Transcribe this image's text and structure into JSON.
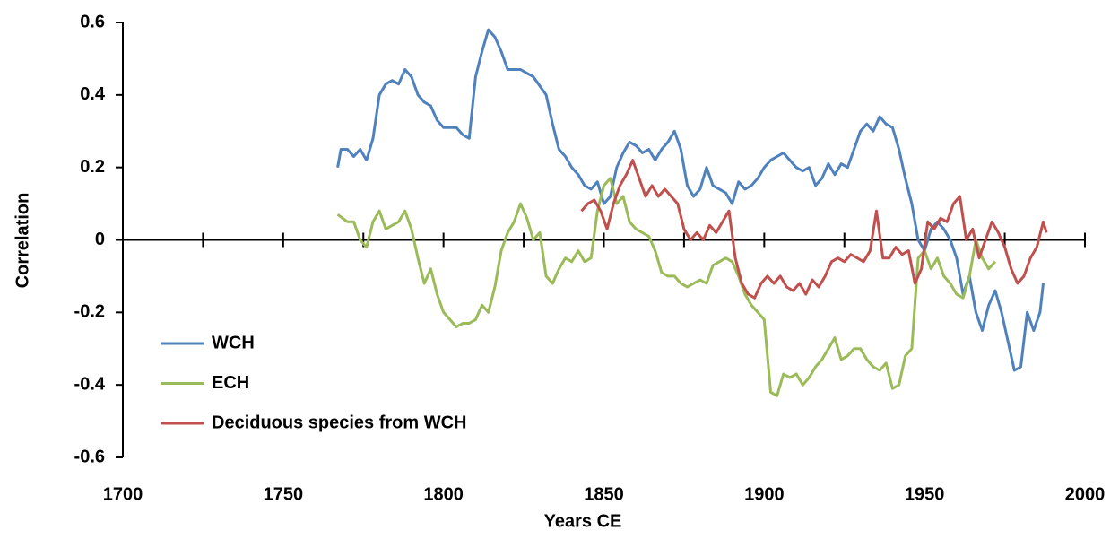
{
  "chart_data": {
    "type": "line",
    "x_label": "Years CE",
    "y_label": "Correlation",
    "xlim": [
      1700,
      2000
    ],
    "xticks": [
      1700,
      1750,
      1800,
      1850,
      1900,
      1950,
      2000
    ],
    "xminor_ticks": [
      1725,
      1775,
      1825,
      1875,
      1925,
      1975
    ],
    "ylim": [
      -0.6,
      0.6
    ],
    "yticks": [
      -0.6,
      -0.4,
      -0.2,
      0,
      0.2,
      0.4,
      0.6
    ],
    "legend": "lower left",
    "series": [
      {
        "name": "WCH",
        "color": "#4f81bd",
        "x": [
          1767,
          1768,
          1770,
          1772,
          1774,
          1776,
          1778,
          1780,
          1782,
          1784,
          1786,
          1788,
          1790,
          1792,
          1794,
          1796,
          1798,
          1800,
          1802,
          1804,
          1806,
          1808,
          1810,
          1812,
          1814,
          1816,
          1818,
          1820,
          1824,
          1828,
          1832,
          1834,
          1836,
          1838,
          1840,
          1842,
          1844,
          1846,
          1848,
          1850,
          1852,
          1854,
          1856,
          1858,
          1860,
          1862,
          1864,
          1866,
          1868,
          1870,
          1872,
          1874,
          1876,
          1878,
          1880,
          1882,
          1884,
          1886,
          1888,
          1890,
          1892,
          1894,
          1896,
          1898,
          1900,
          1902,
          1904,
          1906,
          1908,
          1910,
          1912,
          1914,
          1916,
          1918,
          1920,
          1922,
          1924,
          1926,
          1928,
          1930,
          1932,
          1934,
          1936,
          1938,
          1940,
          1942,
          1944,
          1946,
          1948,
          1950,
          1952,
          1954,
          1956,
          1958,
          1960,
          1962,
          1964,
          1966,
          1968,
          1970,
          1972,
          1974,
          1976,
          1978,
          1980,
          1982,
          1984,
          1986,
          1987
        ],
        "values": [
          0.2,
          0.25,
          0.25,
          0.23,
          0.25,
          0.22,
          0.28,
          0.4,
          0.43,
          0.44,
          0.43,
          0.47,
          0.45,
          0.4,
          0.38,
          0.37,
          0.33,
          0.31,
          0.31,
          0.31,
          0.29,
          0.28,
          0.45,
          0.52,
          0.58,
          0.56,
          0.52,
          0.47,
          0.47,
          0.45,
          0.4,
          0.32,
          0.25,
          0.23,
          0.2,
          0.18,
          0.15,
          0.14,
          0.16,
          0.1,
          0.12,
          0.2,
          0.24,
          0.27,
          0.26,
          0.24,
          0.25,
          0.22,
          0.25,
          0.27,
          0.3,
          0.25,
          0.15,
          0.12,
          0.14,
          0.2,
          0.15,
          0.14,
          0.13,
          0.1,
          0.16,
          0.14,
          0.15,
          0.17,
          0.2,
          0.22,
          0.23,
          0.24,
          0.22,
          0.2,
          0.19,
          0.2,
          0.15,
          0.17,
          0.21,
          0.18,
          0.21,
          0.2,
          0.25,
          0.3,
          0.32,
          0.3,
          0.34,
          0.32,
          0.31,
          0.25,
          0.17,
          0.1,
          0.0,
          -0.03,
          0.03,
          0.05,
          0.03,
          0.0,
          -0.05,
          -0.15,
          -0.1,
          -0.2,
          -0.25,
          -0.18,
          -0.14,
          -0.2,
          -0.28,
          -0.36,
          -0.35,
          -0.2,
          -0.25,
          -0.2,
          -0.12
        ]
      },
      {
        "name": "ECH",
        "color": "#9bbb59",
        "x": [
          1767,
          1770,
          1772,
          1774,
          1776,
          1778,
          1780,
          1782,
          1784,
          1786,
          1788,
          1790,
          1792,
          1794,
          1796,
          1798,
          1800,
          1802,
          1804,
          1806,
          1808,
          1810,
          1812,
          1814,
          1816,
          1818,
          1820,
          1822,
          1824,
          1826,
          1828,
          1830,
          1832,
          1834,
          1836,
          1838,
          1840,
          1842,
          1844,
          1846,
          1848,
          1850,
          1852,
          1854,
          1856,
          1858,
          1860,
          1862,
          1864,
          1866,
          1868,
          1870,
          1872,
          1874,
          1876,
          1878,
          1880,
          1882,
          1884,
          1886,
          1888,
          1890,
          1892,
          1894,
          1896,
          1898,
          1900,
          1902,
          1904,
          1906,
          1908,
          1910,
          1912,
          1914,
          1916,
          1918,
          1920,
          1922,
          1924,
          1926,
          1928,
          1930,
          1932,
          1934,
          1936,
          1938,
          1940,
          1942,
          1944,
          1946,
          1948,
          1950,
          1952,
          1954,
          1956,
          1958,
          1960,
          1962,
          1964,
          1966,
          1968,
          1970,
          1972
        ],
        "values": [
          0.07,
          0.05,
          0.05,
          0.0,
          -0.02,
          0.05,
          0.08,
          0.03,
          0.04,
          0.05,
          0.08,
          0.03,
          -0.05,
          -0.12,
          -0.08,
          -0.15,
          -0.2,
          -0.22,
          -0.24,
          -0.23,
          -0.23,
          -0.22,
          -0.18,
          -0.2,
          -0.13,
          -0.03,
          0.02,
          0.05,
          0.1,
          0.06,
          0.0,
          0.02,
          -0.1,
          -0.12,
          -0.08,
          -0.05,
          -0.06,
          -0.03,
          -0.06,
          -0.05,
          0.08,
          0.15,
          0.17,
          0.1,
          0.12,
          0.05,
          0.03,
          0.02,
          0.01,
          -0.03,
          -0.09,
          -0.1,
          -0.1,
          -0.12,
          -0.13,
          -0.12,
          -0.11,
          -0.12,
          -0.07,
          -0.06,
          -0.05,
          -0.06,
          -0.1,
          -0.15,
          -0.18,
          -0.2,
          -0.22,
          -0.42,
          -0.43,
          -0.37,
          -0.38,
          -0.37,
          -0.4,
          -0.38,
          -0.35,
          -0.33,
          -0.3,
          -0.27,
          -0.33,
          -0.32,
          -0.3,
          -0.3,
          -0.33,
          -0.35,
          -0.36,
          -0.34,
          -0.41,
          -0.4,
          -0.32,
          -0.3,
          -0.05,
          -0.03,
          -0.08,
          -0.05,
          -0.1,
          -0.12,
          -0.15,
          -0.16,
          -0.1,
          0.0,
          -0.05,
          -0.08,
          -0.06
        ]
      },
      {
        "name": "Deciduous species from WCH",
        "color": "#c0504d",
        "x": [
          1843,
          1845,
          1847,
          1849,
          1851,
          1853,
          1855,
          1857,
          1859,
          1861,
          1863,
          1865,
          1867,
          1869,
          1871,
          1873,
          1875,
          1877,
          1879,
          1881,
          1883,
          1885,
          1887,
          1889,
          1891,
          1893,
          1895,
          1897,
          1899,
          1901,
          1903,
          1905,
          1907,
          1909,
          1911,
          1913,
          1915,
          1917,
          1919,
          1921,
          1923,
          1925,
          1927,
          1929,
          1931,
          1933,
          1935,
          1937,
          1939,
          1941,
          1943,
          1945,
          1947,
          1949,
          1951,
          1953,
          1955,
          1957,
          1959,
          1961,
          1963,
          1965,
          1967,
          1969,
          1971,
          1973,
          1975,
          1977,
          1979,
          1981,
          1983,
          1985,
          1987,
          1988
        ],
        "values": [
          0.08,
          0.1,
          0.11,
          0.08,
          0.03,
          0.1,
          0.15,
          0.18,
          0.22,
          0.17,
          0.12,
          0.15,
          0.12,
          0.14,
          0.12,
          0.1,
          0.03,
          0.0,
          0.02,
          0.0,
          0.04,
          0.02,
          0.05,
          0.08,
          -0.05,
          -0.12,
          -0.15,
          -0.16,
          -0.12,
          -0.1,
          -0.12,
          -0.1,
          -0.13,
          -0.14,
          -0.12,
          -0.15,
          -0.11,
          -0.13,
          -0.1,
          -0.06,
          -0.05,
          -0.06,
          -0.04,
          -0.05,
          -0.06,
          -0.03,
          0.08,
          -0.05,
          -0.05,
          -0.02,
          -0.04,
          -0.03,
          -0.12,
          -0.08,
          0.05,
          0.03,
          0.06,
          0.05,
          0.1,
          0.12,
          0.0,
          0.03,
          -0.05,
          0.0,
          0.05,
          0.02,
          -0.02,
          -0.08,
          -0.12,
          -0.1,
          -0.05,
          -0.02,
          0.05,
          0.02
        ]
      }
    ]
  }
}
